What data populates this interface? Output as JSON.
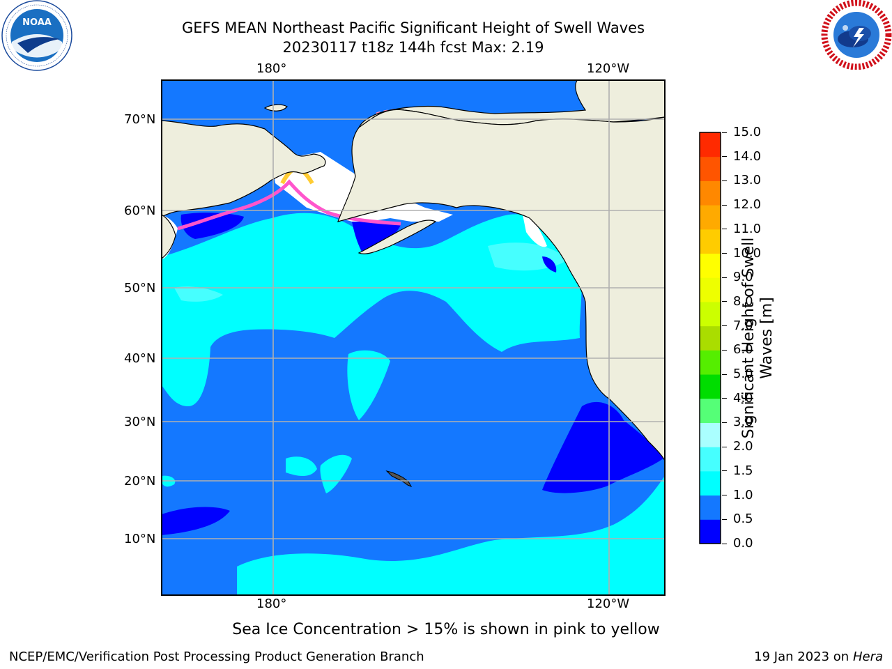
{
  "title": {
    "line1": "GEFS MEAN Northeast Pacific Significant Height of Swell Waves",
    "line2": "20230117 t18z 144h fcst   Max: 2.19"
  },
  "logos": {
    "noaa": {
      "text": "NOAA",
      "ring_text": "NATIONAL OCEANIC AND ATMOSPHERIC ADMINISTRATION · U.S. DEPARTMENT OF COMMERCE",
      "color": "#1a6fc2"
    },
    "nws": {
      "ring_text": "NATIONAL WEATHER SERVICE",
      "color": "#d0101a"
    }
  },
  "map": {
    "longitude_labels_top": [
      "180°",
      "120°W"
    ],
    "longitude_labels_bottom": [
      "180°",
      "120°W"
    ],
    "latitude_labels": [
      "70°N",
      "60°N",
      "50°N",
      "40°N",
      "30°N",
      "20°N",
      "10°N"
    ],
    "land_color": "#eeeedd",
    "ice_color": "#ffffff",
    "grid_color": "#b0b0b0"
  },
  "colorbar": {
    "label": "Significant Height of Swell Waves [m]",
    "ticks": [
      "15.0",
      "14.0",
      "13.0",
      "12.0",
      "11.0",
      "10.0",
      "9.0",
      "8.0",
      "7.0",
      "6.0",
      "5.0",
      "4.0",
      "3.0",
      "2.0",
      "1.5",
      "1.0",
      "0.5",
      "0.0"
    ],
    "levels": [
      0.0,
      0.5,
      1.0,
      1.5,
      2.0,
      3.0,
      4.0,
      5.0,
      6.0,
      7.0,
      8.0,
      9.0,
      10.0,
      11.0,
      12.0,
      13.0,
      14.0,
      15.0
    ],
    "colors": [
      "#0000ff",
      "#1478ff",
      "#00ffff",
      "#46ffff",
      "#aaffff",
      "#55ff77",
      "#00dd00",
      "#55ee00",
      "#aadd00",
      "#ccff00",
      "#eeff00",
      "#ffff00",
      "#ffcc00",
      "#ffaa00",
      "#ff8800",
      "#ff5500",
      "#ff2a00",
      "#ff0000"
    ]
  },
  "ice_note": "Sea Ice Concentration > 15% is shown in pink to yellow",
  "footer": {
    "left": "NCEP/EMC/Verification Post Processing Product Generation Branch",
    "right_prefix": "19 Jan 2023 on ",
    "right_machine": "Hera"
  }
}
